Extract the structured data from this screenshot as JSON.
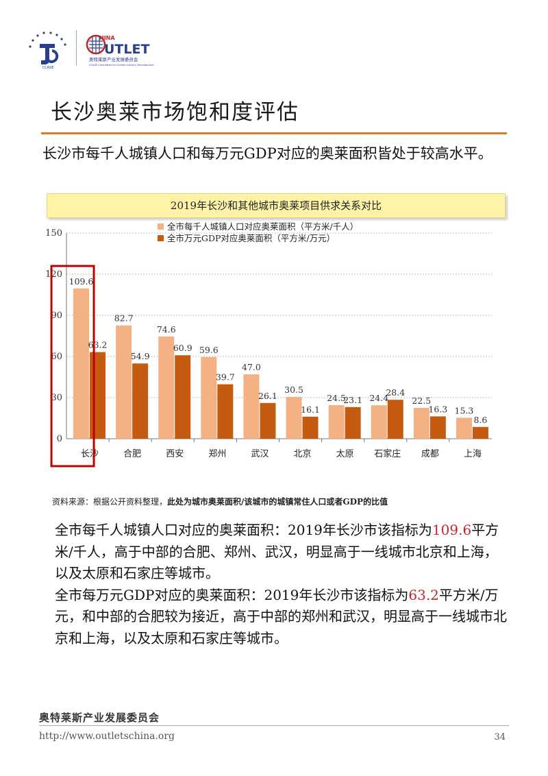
{
  "header": {
    "logo_ccase_text": "CCASE",
    "logo_brand_prefix": "HINA",
    "logo_brand_name": "UTLET",
    "logo_brand_cn": "奥特莱斯产业发展委员会",
    "logo_brand_en": "CCASE Committee for Outlets Industry Development"
  },
  "page": {
    "title": "长沙奥莱市场饱和度评估",
    "lead": "长沙市每千人城镇人口和每万元GDP对应的奥莱面积皆处于较高水平。"
  },
  "chart_title": "2019年长沙和其他城市奥莱项目供求关系对比",
  "chart_data": {
    "type": "bar",
    "title": "2019年长沙和其他城市奥莱项目供求关系对比",
    "categories": [
      "长沙",
      "合肥",
      "西安",
      "郑州",
      "武汉",
      "北京",
      "太原",
      "石家庄",
      "成都",
      "上海"
    ],
    "series": [
      {
        "name": "全市每千人城镇人口对应奥莱面积（平方米/千人）",
        "values": [
          109.6,
          82.7,
          74.6,
          59.6,
          47.0,
          30.5,
          24.5,
          24.4,
          22.5,
          15.3
        ],
        "color": "#f4b183"
      },
      {
        "name": "全市万元GDP对应奥莱面积（平方米/万元）",
        "values": [
          63.2,
          54.9,
          60.9,
          39.7,
          26.1,
          16.1,
          23.1,
          28.4,
          16.3,
          8.6
        ],
        "color": "#c55a11"
      }
    ],
    "value_labels": [
      [
        "109.6",
        "82.7",
        "74.6",
        "59.6",
        "47.0",
        "30.5",
        "24.5",
        "24.4",
        "22.5",
        "15.3"
      ],
      [
        "63.2",
        "54.9",
        "60.9",
        "39.7",
        "26.1",
        "16.1",
        "23.1",
        "28.4",
        "16.3",
        "8.6"
      ]
    ],
    "ylim": [
      0,
      150
    ],
    "yticks": [
      "0",
      "30",
      "60",
      "90",
      "120",
      "150"
    ],
    "xlabel": "",
    "ylabel": "",
    "grid": "horizontal dotted",
    "legend_position": "top",
    "highlight_category": "长沙",
    "highlight_color": "#c00000"
  },
  "source": {
    "prefix": "资料来源：根据公开资料整理，",
    "bold": "此处为城市奥莱面积/该城市的城镇常住人口或者GDP的比值"
  },
  "body": {
    "p1_a": "全市每千人城镇人口对应的奥莱面积：2019年长沙市该指标为",
    "p1_value": "109.6",
    "p1_b": "平方米/千人，高于中部的合肥、郑州、武汉，明显高于一线城市北京和上海，以及太原和石家庄等城市。",
    "p2_a": "全市每万元GDP对应的奥莱面积：2019年长沙市该指标为",
    "p2_value": "63.2",
    "p2_b": "平方米/万元，和中部的合肥较为接近，高于中部的郑州和武汉，明显高于一线城市北京和上海，以及太原和石家庄等城市。"
  },
  "footer": {
    "org": "奥特莱斯产业发展委员会",
    "url": "http://www.outletschina.org",
    "page_number": "34"
  }
}
